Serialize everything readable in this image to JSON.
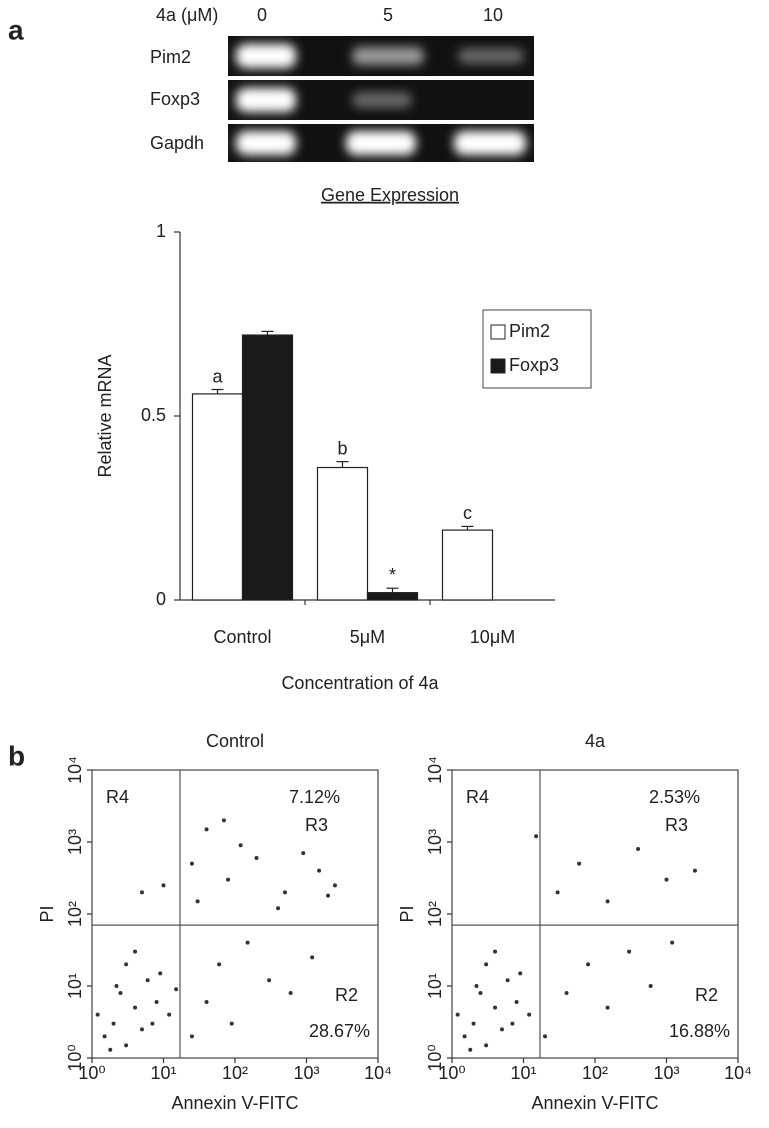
{
  "panels": [
    "a",
    "b"
  ],
  "gel": {
    "header": "4a (μM)",
    "lanes": [
      "0",
      "5",
      "10"
    ],
    "rows": [
      "Pim2",
      "Foxp3",
      "Gapdh"
    ]
  },
  "chart_data": [
    {
      "type": "bar",
      "title": "Gene Expression",
      "ylabel": "Relative mRNA",
      "xlabel": "Concentration of 4a",
      "categories": [
        "Control",
        "5μM",
        "10μM"
      ],
      "series": [
        {
          "name": "Pim2",
          "color": "#ffffff",
          "values": [
            0.56,
            0.36,
            0.19
          ],
          "errors": [
            0.012,
            0.016,
            0.01
          ],
          "annotations": [
            "a",
            "b",
            "c"
          ]
        },
        {
          "name": "Foxp3",
          "color": "#1a1a1a",
          "values": [
            0.72,
            0.02,
            null
          ],
          "errors": [
            0.01,
            0.012,
            null
          ],
          "annotations": [
            null,
            "*",
            null
          ]
        }
      ],
      "ylim": [
        0,
        1
      ],
      "yticks": [
        0,
        0.5,
        1
      ],
      "legend": "right"
    },
    {
      "type": "scatter",
      "title": "Control",
      "xlabel": "Annexin V-FITC",
      "ylabel": "PI",
      "log": true,
      "color": "#333333",
      "xlim": [
        1,
        10000
      ],
      "ylim": [
        1,
        10000
      ],
      "xticks": [
        {
          "value": 1,
          "label": "10⁰"
        },
        {
          "value": 10,
          "label": "10¹"
        },
        {
          "value": 100,
          "label": "10²"
        },
        {
          "value": 1000,
          "label": "10³"
        },
        {
          "value": 10000,
          "label": "10⁴"
        }
      ],
      "yticks": [
        {
          "value": 1,
          "label": "10⁰"
        },
        {
          "value": 10,
          "label": "10¹"
        },
        {
          "value": 100,
          "label": "10²"
        },
        {
          "value": 1000,
          "label": "10³"
        },
        {
          "value": 10000,
          "label": "10⁴"
        }
      ],
      "gates": {
        "x": 17,
        "y": 70
      },
      "labels": {
        "r4": "R4",
        "r3_pct": "7.12%",
        "r3": "R3",
        "r2": "R2",
        "r2_pct": "28.67%"
      },
      "x": [
        1.5,
        2,
        3,
        4,
        2.5,
        5,
        6,
        1.2,
        3,
        8,
        1.8,
        4,
        7,
        2.2,
        9,
        12,
        15,
        25,
        40,
        60,
        90,
        150,
        300,
        600,
        1200,
        30,
        80,
        200,
        500,
        1500,
        2500,
        40,
        120,
        400,
        900,
        2000,
        25,
        70,
        10,
        5
      ],
      "y": [
        2,
        3,
        1.5,
        5,
        8,
        2.5,
        12,
        4,
        20,
        6,
        1.3,
        30,
        3,
        10,
        15,
        4,
        9,
        2,
        6,
        20,
        3,
        40,
        12,
        8,
        25,
        150,
        300,
        600,
        200,
        400,
        250,
        1500,
        900,
        120,
        700,
        180,
        500,
        2000,
        250,
        200
      ]
    },
    {
      "type": "scatter",
      "title": "4a",
      "xlabel": "Annexin V-FITC",
      "ylabel": "PI",
      "log": true,
      "color": "#333333",
      "xlim": [
        1,
        10000
      ],
      "ylim": [
        1,
        10000
      ],
      "xticks": [
        {
          "value": 1,
          "label": "10⁰"
        },
        {
          "value": 10,
          "label": "10¹"
        },
        {
          "value": 100,
          "label": "10²"
        },
        {
          "value": 1000,
          "label": "10³"
        },
        {
          "value": 10000,
          "label": "10⁴"
        }
      ],
      "yticks": [
        {
          "value": 1,
          "label": "10⁰"
        },
        {
          "value": 10,
          "label": "10¹"
        },
        {
          "value": 100,
          "label": "10²"
        },
        {
          "value": 1000,
          "label": "10³"
        },
        {
          "value": 10000,
          "label": "10⁴"
        }
      ],
      "gates": {
        "x": 17,
        "y": 70
      },
      "labels": {
        "r4": "R4",
        "r3_pct": "2.53%",
        "r3": "R3",
        "r2": "R2",
        "r2_pct": "16.88%"
      },
      "x": [
        1.5,
        2,
        3,
        4,
        2.5,
        5,
        6,
        1.2,
        3,
        8,
        1.8,
        4,
        7,
        2.2,
        9,
        12,
        20,
        40,
        80,
        150,
        300,
        600,
        1200,
        30,
        60,
        150,
        400,
        1000,
        2500,
        15
      ],
      "y": [
        2,
        3,
        1.5,
        5,
        8,
        2.5,
        12,
        4,
        20,
        6,
        1.3,
        30,
        3,
        10,
        15,
        4,
        2,
        8,
        20,
        5,
        30,
        10,
        40,
        200,
        500,
        150,
        800,
        300,
        400,
        1200
      ]
    }
  ]
}
